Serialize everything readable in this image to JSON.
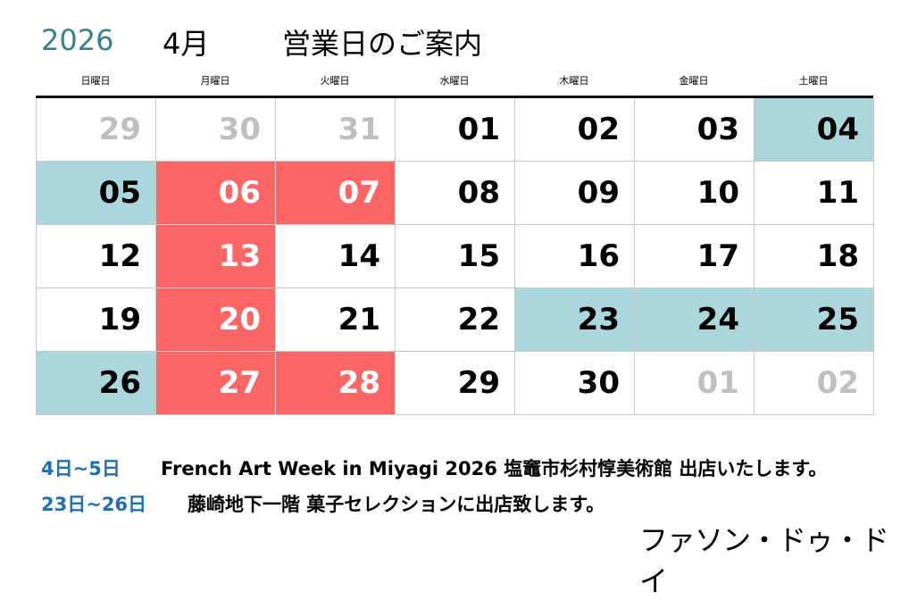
{
  "header": {
    "year": "2026",
    "month": "4月",
    "title": "営業日のご案内"
  },
  "weekdays": [
    "日曜日",
    "月曜日",
    "火曜日",
    "水曜日",
    "木曜日",
    "金曜日",
    "土曜日"
  ],
  "colors": {
    "closed": "#fe6565",
    "event": "#aad6dc",
    "other_month": "#bfbfbf",
    "year": "#3a7f8c",
    "note_date": "#1f6fb5"
  },
  "days": [
    {
      "n": "29",
      "s": "other-month"
    },
    {
      "n": "30",
      "s": "other-month"
    },
    {
      "n": "31",
      "s": "other-month"
    },
    {
      "n": "01",
      "s": "open"
    },
    {
      "n": "02",
      "s": "open"
    },
    {
      "n": "03",
      "s": "open"
    },
    {
      "n": "04",
      "s": "event"
    },
    {
      "n": "05",
      "s": "event"
    },
    {
      "n": "06",
      "s": "closed"
    },
    {
      "n": "07",
      "s": "closed"
    },
    {
      "n": "08",
      "s": "open"
    },
    {
      "n": "09",
      "s": "open"
    },
    {
      "n": "10",
      "s": "open"
    },
    {
      "n": "11",
      "s": "open"
    },
    {
      "n": "12",
      "s": "open"
    },
    {
      "n": "13",
      "s": "closed"
    },
    {
      "n": "14",
      "s": "open"
    },
    {
      "n": "15",
      "s": "open"
    },
    {
      "n": "16",
      "s": "open"
    },
    {
      "n": "17",
      "s": "open"
    },
    {
      "n": "18",
      "s": "open"
    },
    {
      "n": "19",
      "s": "open"
    },
    {
      "n": "20",
      "s": "closed"
    },
    {
      "n": "21",
      "s": "open"
    },
    {
      "n": "22",
      "s": "open"
    },
    {
      "n": "23",
      "s": "event"
    },
    {
      "n": "24",
      "s": "event"
    },
    {
      "n": "25",
      "s": "event"
    },
    {
      "n": "26",
      "s": "event"
    },
    {
      "n": "27",
      "s": "closed"
    },
    {
      "n": "28",
      "s": "closed"
    },
    {
      "n": "29",
      "s": "open"
    },
    {
      "n": "30",
      "s": "open"
    },
    {
      "n": "01",
      "s": "other-month"
    },
    {
      "n": "02",
      "s": "other-month"
    }
  ],
  "notes": [
    {
      "dates": "4日~5日",
      "text": "French Art Week in Miyagi 2026  塩竈市杉村惇美術館  出店いたします。"
    },
    {
      "dates": "23日~26日",
      "text": "藤崎地下一階  菓子セレクションに出店致します。"
    }
  ],
  "shop_name": "ファソン・ドゥ・ドイ"
}
